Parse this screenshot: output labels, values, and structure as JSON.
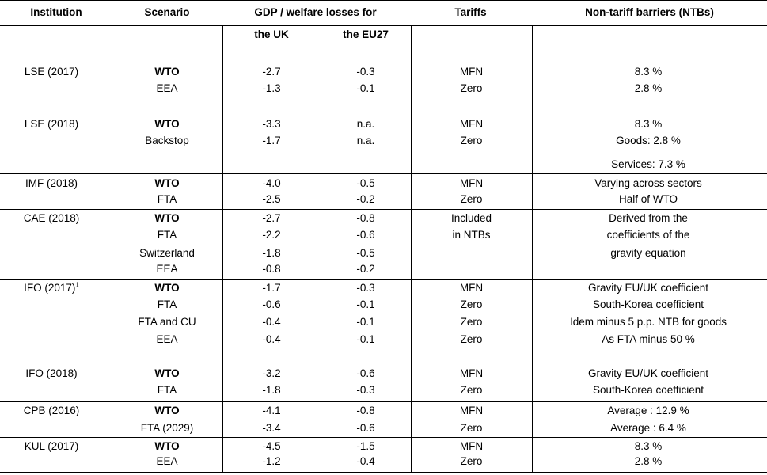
{
  "headers": {
    "institution": "Institution",
    "scenario": "Scenario",
    "gdp": "GDP / welfare losses for",
    "tariffs": "Tariffs",
    "ntb": "Non-tariff barriers (NTBs)",
    "uk": "the UK",
    "eu27": "the EU27"
  },
  "groups": [
    {
      "name": "LSE (2017)",
      "sup": ""
    },
    {
      "name": "LSE (2018)",
      "sup": ""
    },
    {
      "name": "IMF (2018)",
      "sup": ""
    },
    {
      "name": "CAE (2018)",
      "sup": ""
    },
    {
      "name": "IFO (2017)",
      "sup": "1"
    },
    {
      "name": "IFO (2018)",
      "sup": ""
    },
    {
      "name": "CPB (2016)",
      "sup": ""
    },
    {
      "name": "KUL (2017)",
      "sup": ""
    }
  ],
  "rows": [
    {
      "scenario": "WTO",
      "uk": "-2.7",
      "eu": "-0.3",
      "tariff": "MFN",
      "ntb": "8.3 %"
    },
    {
      "scenario": "EEA",
      "uk": "-1.3",
      "eu": "-0.1",
      "tariff": "Zero",
      "ntb": "2.8 %"
    },
    {
      "scenario": "WTO",
      "uk": "-3.3",
      "eu": "n.a.",
      "tariff": "MFN",
      "ntb": "8.3 %"
    },
    {
      "scenario": "Backstop",
      "uk": "-1.7",
      "eu": "n.a.",
      "tariff": "Zero",
      "ntb": "Goods: 2.8 %"
    },
    {
      "scenario": "",
      "uk": "",
      "eu": "",
      "tariff": "",
      "ntb": "Services: 7.3 %"
    },
    {
      "scenario": "WTO",
      "uk": "-4.0",
      "eu": "-0.5",
      "tariff": "MFN",
      "ntb": "Varying across sectors"
    },
    {
      "scenario": "FTA",
      "uk": "-2.5",
      "eu": "-0.2",
      "tariff": "Zero",
      "ntb": "Half of WTO"
    },
    {
      "scenario": "WTO",
      "uk": "-2.7",
      "eu": "-0.8",
      "tariff": "Included",
      "ntb": "Derived from the"
    },
    {
      "scenario": "FTA",
      "uk": "-2.2",
      "eu": "-0.6",
      "tariff": "in NTBs",
      "ntb": "coefficients of the"
    },
    {
      "scenario": "Switzerland",
      "uk": "-1.8",
      "eu": "-0.5",
      "tariff": "",
      "ntb": "gravity equation"
    },
    {
      "scenario": "EEA",
      "uk": "-0.8",
      "eu": "-0.2",
      "tariff": "",
      "ntb": ""
    },
    {
      "scenario": "WTO",
      "uk": "-1.7",
      "eu": "-0.3",
      "tariff": "MFN",
      "ntb": "Gravity EU/UK coefficient"
    },
    {
      "scenario": "FTA",
      "uk": "-0.6",
      "eu": "-0.1",
      "tariff": "Zero",
      "ntb": "South-Korea coefficient"
    },
    {
      "scenario": "FTA and CU",
      "uk": "-0.4",
      "eu": "-0.1",
      "tariff": "Zero",
      "ntb": "Idem minus 5 p.p. NTB for goods"
    },
    {
      "scenario": "EEA",
      "uk": "-0.4",
      "eu": "-0.1",
      "tariff": "Zero",
      "ntb": "As FTA minus 50 %"
    },
    {
      "scenario": "WTO",
      "uk": "-3.2",
      "eu": "-0.6",
      "tariff": "MFN",
      "ntb": "Gravity EU/UK coefficient"
    },
    {
      "scenario": "FTA",
      "uk": "-1.8",
      "eu": "-0.3",
      "tariff": "Zero",
      "ntb": "South-Korea coefficient"
    },
    {
      "scenario": "WTO",
      "uk": "-4.1",
      "eu": "-0.8",
      "tariff": "MFN",
      "ntb": "Average : 12.9 %"
    },
    {
      "scenario": "FTA (2029)",
      "uk": "-3.4",
      "eu": "-0.6",
      "tariff": "Zero",
      "ntb": "Average : 6.4 %"
    },
    {
      "scenario": "WTO",
      "uk": "-4.5",
      "eu": "-1.5",
      "tariff": "MFN",
      "ntb": "8.3 %"
    },
    {
      "scenario": "EEA",
      "uk": "-1.2",
      "eu": "-0.4",
      "tariff": "Zero",
      "ntb": "2.8 %"
    }
  ]
}
